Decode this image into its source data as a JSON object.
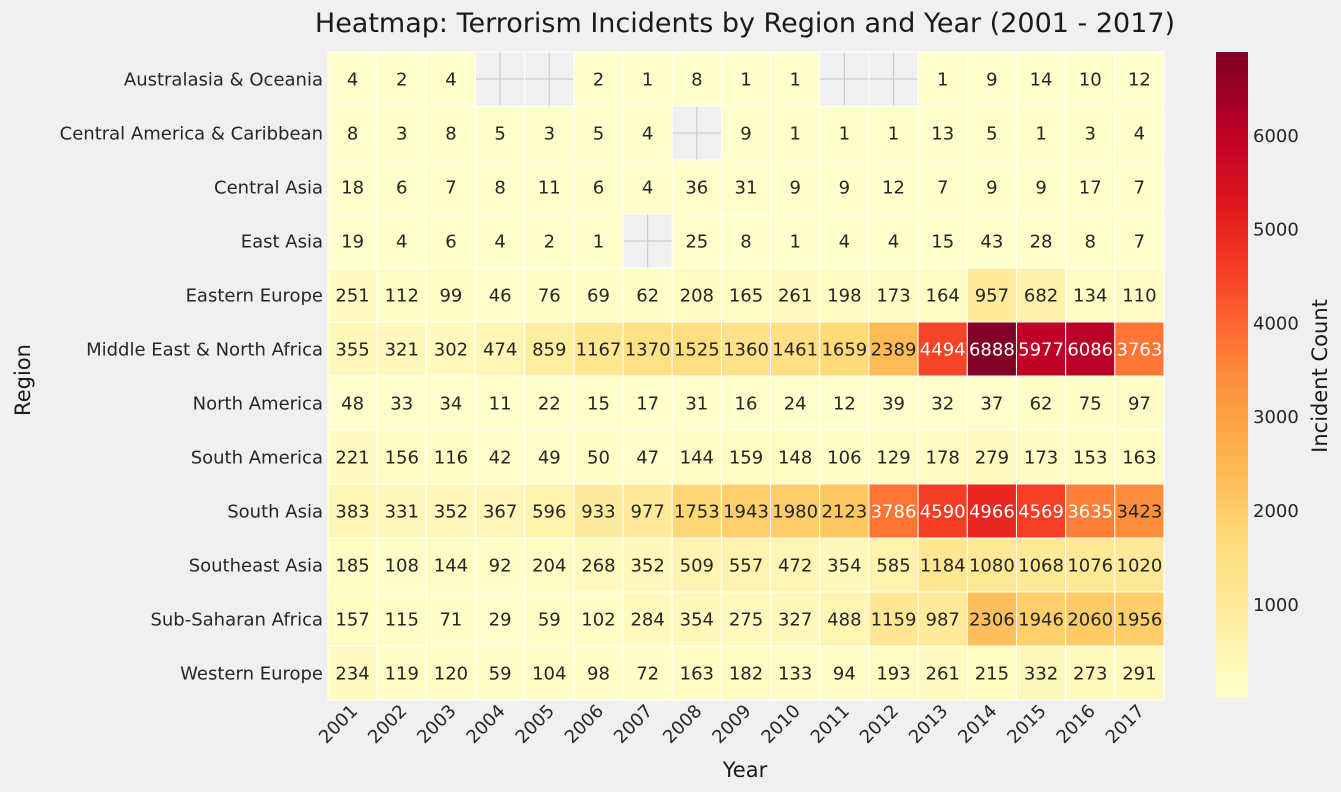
{
  "chart_data": {
    "type": "heatmap",
    "title": "Heatmap: Terrorism Incidents by Region and Year (2001 - 2017)",
    "xlabel": "Year",
    "ylabel": "Region",
    "colorbar_label": "Incident Count",
    "colormap": "YlOrRd",
    "vmin": 1,
    "vmax": 6888,
    "colorbar_ticks": [
      1000,
      2000,
      3000,
      4000,
      5000,
      6000
    ],
    "x": [
      "2001",
      "2002",
      "2003",
      "2004",
      "2005",
      "2006",
      "2007",
      "2008",
      "2009",
      "2010",
      "2011",
      "2012",
      "2013",
      "2014",
      "2015",
      "2016",
      "2017"
    ],
    "y": [
      "Australasia & Oceania",
      "Central America & Caribbean",
      "Central Asia",
      "East Asia",
      "Eastern Europe",
      "Middle East & North Africa",
      "North America",
      "South America",
      "South Asia",
      "Southeast Asia",
      "Sub-Saharan Africa",
      "Western Europe"
    ],
    "values": [
      [
        4,
        2,
        4,
        null,
        null,
        2,
        1,
        8,
        1,
        1,
        null,
        null,
        1,
        9,
        14,
        10,
        12
      ],
      [
        8,
        3,
        8,
        5,
        3,
        5,
        4,
        null,
        9,
        1,
        1,
        1,
        13,
        5,
        1,
        3,
        4
      ],
      [
        18,
        6,
        7,
        8,
        11,
        6,
        4,
        36,
        31,
        9,
        9,
        12,
        7,
        9,
        9,
        17,
        7
      ],
      [
        19,
        4,
        6,
        4,
        2,
        1,
        null,
        25,
        8,
        1,
        4,
        4,
        15,
        43,
        28,
        8,
        7
      ],
      [
        251,
        112,
        99,
        46,
        76,
        69,
        62,
        208,
        165,
        261,
        198,
        173,
        164,
        957,
        682,
        134,
        110
      ],
      [
        355,
        321,
        302,
        474,
        859,
        1167,
        1370,
        1525,
        1360,
        1461,
        1659,
        2389,
        4494,
        6888,
        5977,
        6086,
        3763
      ],
      [
        48,
        33,
        34,
        11,
        22,
        15,
        17,
        31,
        16,
        24,
        12,
        39,
        32,
        37,
        62,
        75,
        97
      ],
      [
        221,
        156,
        116,
        42,
        49,
        50,
        47,
        144,
        159,
        148,
        106,
        129,
        178,
        279,
        173,
        153,
        163
      ],
      [
        383,
        331,
        352,
        367,
        596,
        933,
        977,
        1753,
        1943,
        1980,
        2123,
        3786,
        4590,
        4966,
        4569,
        3635,
        3423
      ],
      [
        185,
        108,
        144,
        92,
        204,
        268,
        352,
        509,
        557,
        472,
        354,
        585,
        1184,
        1080,
        1068,
        1076,
        1020
      ],
      [
        157,
        115,
        71,
        29,
        59,
        102,
        284,
        354,
        275,
        327,
        488,
        1159,
        987,
        2306,
        1946,
        2060,
        1956
      ],
      [
        234,
        119,
        120,
        59,
        104,
        98,
        72,
        163,
        182,
        133,
        94,
        193,
        261,
        215,
        332,
        273,
        291
      ]
    ]
  }
}
